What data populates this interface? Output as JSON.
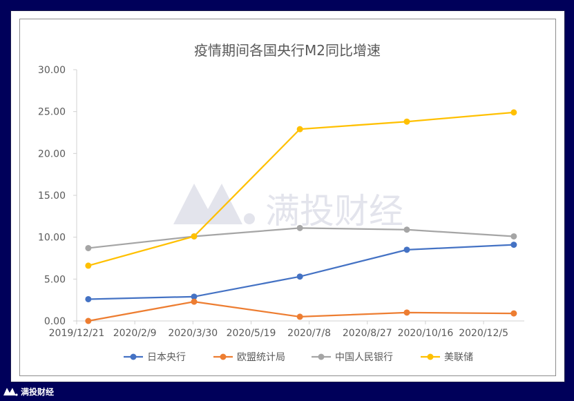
{
  "brand": {
    "watermark_text": "满投财经",
    "footer_text": "满投财经"
  },
  "chart_data": {
    "type": "line",
    "title": "疫情期间各国央行M2同比增速",
    "x_tick_labels": [
      "2019/12/21",
      "2020/2/9",
      "2020/3/30",
      "2020/5/19",
      "2020/7/8",
      "2020/8/27",
      "2020/10/16",
      "2020/12/5"
    ],
    "y_tick_labels": [
      "0.00",
      "5.00",
      "10.00",
      "15.00",
      "20.00",
      "25.00",
      "30.00"
    ],
    "x_dates": [
      "2019-12-31",
      "2020-03-31",
      "2020-06-30",
      "2020-09-30",
      "2020-12-31"
    ],
    "ylim": [
      0,
      30
    ],
    "xlim": [
      "2019-12-21",
      "2021-01-09"
    ],
    "grid": false,
    "legend_position": "bottom",
    "series": [
      {
        "name": "日本央行",
        "color": "#4472c4",
        "values": [
          2.6,
          2.9,
          5.3,
          8.5,
          9.1
        ]
      },
      {
        "name": "欧盟统计局",
        "color": "#ed7d31",
        "values": [
          0.0,
          2.3,
          0.5,
          1.0,
          0.9
        ]
      },
      {
        "name": "中国人民银行",
        "color": "#a5a5a5",
        "values": [
          8.7,
          10.1,
          11.1,
          10.9,
          10.1
        ]
      },
      {
        "name": "美联储",
        "color": "#ffc000",
        "values": [
          6.6,
          10.1,
          22.9,
          23.8,
          24.9
        ]
      }
    ]
  }
}
